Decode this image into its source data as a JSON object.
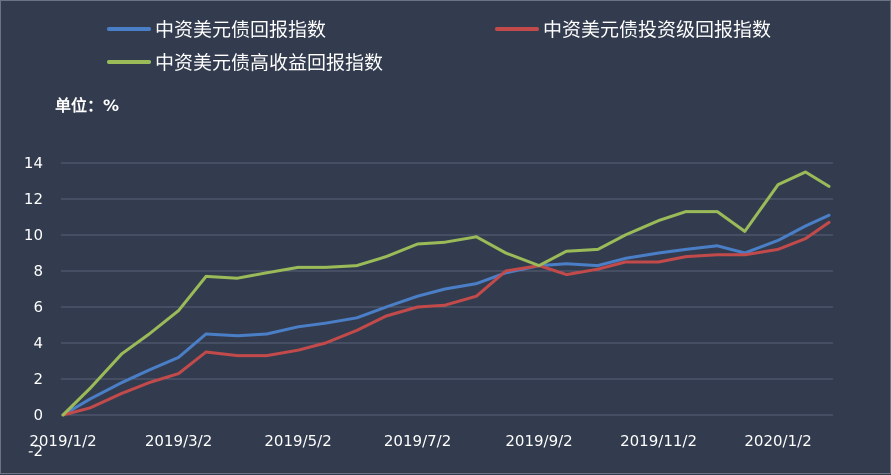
{
  "chart_data": {
    "type": "line",
    "unit_label": "单位：%",
    "ylim": [
      -2,
      14
    ],
    "yticks": [
      -2,
      0,
      2,
      4,
      6,
      8,
      10,
      12,
      14
    ],
    "grid": true,
    "legend_position": "top",
    "x_tick_labels": [
      "2019/1/2",
      "2019/3/2",
      "2019/5/2",
      "2019/7/2",
      "2019/9/2",
      "2019/11/2",
      "2020/1/2"
    ],
    "x_dates": [
      "2019/1/2",
      "2019/1/16",
      "2019/2/1",
      "2019/2/15",
      "2019/3/2",
      "2019/3/16",
      "2019/4/1",
      "2019/4/16",
      "2019/5/2",
      "2019/5/16",
      "2019/6/1",
      "2019/6/16",
      "2019/7/2",
      "2019/7/16",
      "2019/8/1",
      "2019/8/16",
      "2019/9/2",
      "2019/9/16",
      "2019/10/2",
      "2019/10/16",
      "2019/11/2",
      "2019/11/16",
      "2019/12/2",
      "2019/12/16",
      "2020/1/2",
      "2020/1/16",
      "2020/1/28"
    ],
    "series": [
      {
        "name": "中资美元债回报指数",
        "color": "#4a7fc8",
        "values": [
          0.0,
          0.9,
          1.8,
          2.5,
          3.2,
          4.5,
          4.4,
          4.5,
          4.9,
          5.1,
          5.4,
          6.0,
          6.6,
          7.0,
          7.3,
          7.9,
          8.3,
          8.4,
          8.3,
          8.7,
          9.0,
          9.2,
          9.4,
          9.0,
          9.7,
          10.5,
          11.1
        ]
      },
      {
        "name": "中资美元债投资级回报指数",
        "color": "#c24a4a",
        "values": [
          0.0,
          0.4,
          1.2,
          1.8,
          2.3,
          3.5,
          3.3,
          3.3,
          3.6,
          4.0,
          4.7,
          5.5,
          6.0,
          6.1,
          6.6,
          8.0,
          8.3,
          7.8,
          8.1,
          8.5,
          8.5,
          8.8,
          8.9,
          8.9,
          9.2,
          9.8,
          10.7
        ]
      },
      {
        "name": "中资美元债高收益回报指数",
        "color": "#9bbb59",
        "values": [
          0.0,
          1.5,
          3.4,
          4.5,
          5.8,
          7.7,
          7.6,
          7.9,
          8.2,
          8.2,
          8.3,
          8.8,
          9.5,
          9.6,
          9.9,
          9.0,
          8.3,
          9.1,
          9.2,
          10.0,
          10.8,
          11.3,
          11.3,
          10.2,
          12.8,
          13.5,
          12.7
        ]
      }
    ]
  }
}
